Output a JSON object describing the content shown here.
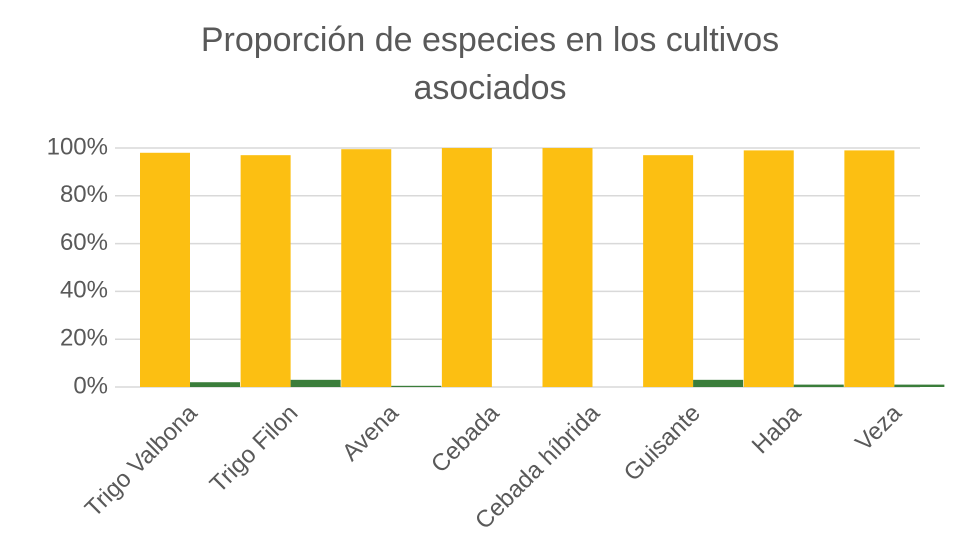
{
  "chart_data": {
    "type": "bar",
    "title": "Proporción de especies en los cultivos asociados",
    "categories": [
      "Trigo Valbona",
      "Trigo Filon",
      "Avena",
      "Cebada",
      "Cebada híbrida",
      "Guisante",
      "Haba",
      "Veza"
    ],
    "series": [
      {
        "color": "#fcbf12",
        "values": [
          98,
          97,
          99.5,
          100,
          100,
          97,
          99,
          99
        ]
      },
      {
        "color": "#3a7d3a",
        "values": [
          2,
          3,
          0.5,
          0,
          0,
          3,
          1,
          1
        ]
      }
    ],
    "ylim": [
      0,
      100
    ],
    "yticks": [
      {
        "value": 0,
        "label": "0%"
      },
      {
        "value": 20,
        "label": "20%"
      },
      {
        "value": 40,
        "label": "40%"
      },
      {
        "value": 60,
        "label": "60%"
      },
      {
        "value": 80,
        "label": "80%"
      },
      {
        "value": 100,
        "label": "100%"
      }
    ],
    "grid": true
  }
}
